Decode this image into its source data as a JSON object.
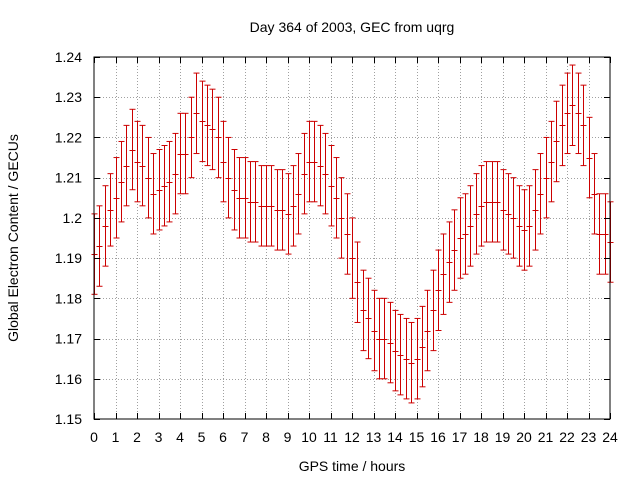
{
  "chart_data": {
    "type": "scatter",
    "title": "Day 364 of 2003, GEC from uqrg",
    "xlabel": "GPS time / hours",
    "ylabel": "Global Electron Content / GECUs",
    "xlim": [
      0,
      24
    ],
    "ylim": [
      1.15,
      1.24
    ],
    "x_ticks": [
      0,
      1,
      2,
      3,
      4,
      5,
      6,
      7,
      8,
      9,
      10,
      11,
      12,
      13,
      14,
      15,
      16,
      17,
      18,
      19,
      20,
      21,
      22,
      23,
      24
    ],
    "y_ticks": [
      1.15,
      1.16,
      1.17,
      1.18,
      1.19,
      1.2,
      1.21,
      1.22,
      1.23,
      1.24
    ],
    "y_tick_labels": [
      "1.15",
      "1.16",
      "1.17",
      "1.18",
      "1.19",
      "1.2",
      "1.21",
      "1.22",
      "1.23",
      "1.24"
    ],
    "grid": true,
    "error_bar_color": "#cc0000",
    "series": [
      {
        "x": [
          0,
          0.25,
          0.5,
          0.75,
          1,
          1.25,
          1.5,
          1.75,
          2,
          2.25,
          2.5,
          2.75,
          3,
          3.25,
          3.5,
          3.75,
          4,
          4.25,
          4.5,
          4.75,
          5,
          5.25,
          5.5,
          5.75,
          6,
          6.25,
          6.5,
          6.75,
          7,
          7.25,
          7.5,
          7.75,
          8,
          8.25,
          8.5,
          8.75,
          9,
          9.25,
          9.5,
          9.75,
          10,
          10.25,
          10.5,
          10.75,
          11,
          11.25,
          11.5,
          11.75,
          12,
          12.25,
          12.5,
          12.75,
          13,
          13.25,
          13.5,
          13.75,
          14,
          14.25,
          14.5,
          14.75,
          15,
          15.25,
          15.5,
          15.75,
          16,
          16.25,
          16.5,
          16.75,
          17,
          17.25,
          17.5,
          17.75,
          18,
          18.25,
          18.5,
          18.75,
          19,
          19.25,
          19.5,
          19.75,
          20,
          20.25,
          20.5,
          20.75,
          21,
          21.25,
          21.5,
          21.75,
          22,
          22.25,
          22.5,
          22.75,
          23,
          23.25,
          23.5,
          23.75,
          24
        ],
        "y": [
          1.191,
          1.193,
          1.198,
          1.202,
          1.205,
          1.209,
          1.213,
          1.217,
          1.214,
          1.213,
          1.21,
          1.206,
          1.207,
          1.208,
          1.209,
          1.211,
          1.216,
          1.216,
          1.22,
          1.226,
          1.224,
          1.223,
          1.222,
          1.22,
          1.214,
          1.21,
          1.207,
          1.205,
          1.205,
          1.204,
          1.204,
          1.203,
          1.203,
          1.203,
          1.202,
          1.202,
          1.201,
          1.203,
          1.206,
          1.211,
          1.214,
          1.214,
          1.213,
          1.211,
          1.208,
          1.205,
          1.2,
          1.196,
          1.19,
          1.184,
          1.177,
          1.175,
          1.172,
          1.17,
          1.17,
          1.169,
          1.167,
          1.166,
          1.165,
          1.164,
          1.165,
          1.168,
          1.172,
          1.177,
          1.182,
          1.186,
          1.189,
          1.192,
          1.195,
          1.196,
          1.198,
          1.201,
          1.203,
          1.204,
          1.204,
          1.204,
          1.202,
          1.201,
          1.2,
          1.198,
          1.197,
          1.198,
          1.202,
          1.206,
          1.21,
          1.214,
          1.219,
          1.223,
          1.226,
          1.228,
          1.226,
          1.223,
          1.215,
          1.206,
          1.196,
          1.196,
          1.194
        ],
        "err": [
          0.01,
          0.01,
          0.01,
          0.009,
          0.01,
          0.01,
          0.01,
          0.01,
          0.01,
          0.01,
          0.01,
          0.01,
          0.01,
          0.01,
          0.01,
          0.01,
          0.01,
          0.01,
          0.01,
          0.01,
          0.01,
          0.01,
          0.01,
          0.01,
          0.01,
          0.01,
          0.01,
          0.01,
          0.01,
          0.01,
          0.01,
          0.01,
          0.01,
          0.01,
          0.01,
          0.01,
          0.01,
          0.01,
          0.01,
          0.01,
          0.01,
          0.01,
          0.01,
          0.01,
          0.01,
          0.01,
          0.01,
          0.01,
          0.01,
          0.01,
          0.01,
          0.01,
          0.01,
          0.01,
          0.01,
          0.01,
          0.01,
          0.01,
          0.01,
          0.01,
          0.01,
          0.01,
          0.01,
          0.01,
          0.01,
          0.01,
          0.01,
          0.01,
          0.01,
          0.01,
          0.01,
          0.01,
          0.01,
          0.01,
          0.01,
          0.01,
          0.01,
          0.01,
          0.01,
          0.01,
          0.01,
          0.01,
          0.01,
          0.01,
          0.01,
          0.01,
          0.01,
          0.01,
          0.01,
          0.01,
          0.01,
          0.01,
          0.01,
          0.01,
          0.01,
          0.01,
          0.01
        ]
      }
    ]
  }
}
